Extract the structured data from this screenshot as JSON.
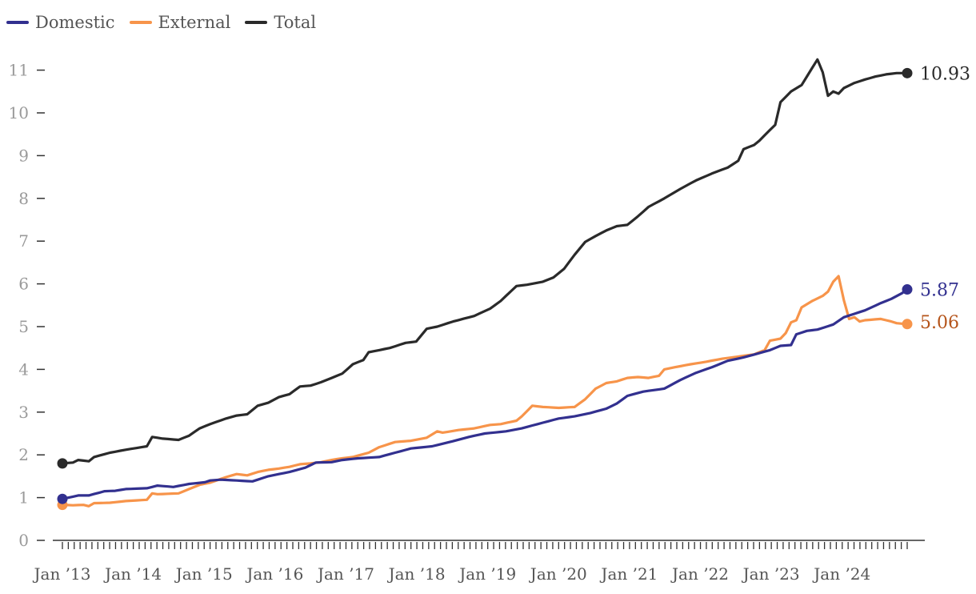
{
  "chart_data": {
    "type": "line",
    "title": "",
    "xlabel": "",
    "ylabel": "",
    "ylim": [
      0,
      11.4
    ],
    "yticks": [
      0,
      1,
      2,
      3,
      4,
      5,
      6,
      7,
      8,
      9,
      10,
      11
    ],
    "xtick_labels": [
      "Jan ’13",
      "Jan ’14",
      "Jan ’15",
      "Jan ’16",
      "Jan ’17",
      "Jan ’18",
      "Jan ’19",
      "Jan ’20",
      "Jan ’21",
      "Jan ’22",
      "Jan ’23",
      "Jan ’24"
    ],
    "x_start": "Jan 2013",
    "x_end": "Dec 2024",
    "months": 144,
    "legend_position": "top-left",
    "grid": false,
    "series": [
      {
        "name": "Domestic",
        "color": "#32308f",
        "end_label": "5.87",
        "anchors": [
          [
            0,
            0.97
          ],
          [
            3,
            1.05
          ],
          [
            5,
            1.05
          ],
          [
            8,
            1.15
          ],
          [
            10,
            1.16
          ],
          [
            12,
            1.2
          ],
          [
            16,
            1.22
          ],
          [
            18,
            1.28
          ],
          [
            21,
            1.25
          ],
          [
            24,
            1.32
          ],
          [
            27,
            1.36
          ],
          [
            28,
            1.4
          ],
          [
            30,
            1.42
          ],
          [
            33,
            1.4
          ],
          [
            36,
            1.38
          ],
          [
            39,
            1.5
          ],
          [
            41,
            1.55
          ],
          [
            43,
            1.6
          ],
          [
            46,
            1.7
          ],
          [
            48,
            1.82
          ],
          [
            51,
            1.83
          ],
          [
            53,
            1.88
          ],
          [
            56,
            1.92
          ],
          [
            60,
            1.95
          ],
          [
            63,
            2.05
          ],
          [
            66,
            2.15
          ],
          [
            70,
            2.2
          ],
          [
            74,
            2.32
          ],
          [
            77,
            2.42
          ],
          [
            80,
            2.5
          ],
          [
            84,
            2.55
          ],
          [
            87,
            2.62
          ],
          [
            90,
            2.72
          ],
          [
            94,
            2.85
          ],
          [
            97,
            2.9
          ],
          [
            100,
            2.98
          ],
          [
            103,
            3.08
          ],
          [
            105,
            3.2
          ],
          [
            107,
            3.38
          ],
          [
            110,
            3.48
          ],
          [
            114,
            3.55
          ],
          [
            117,
            3.75
          ],
          [
            120,
            3.92
          ],
          [
            123,
            4.05
          ],
          [
            126,
            4.2
          ],
          [
            129,
            4.28
          ],
          [
            132,
            4.38
          ],
          [
            134,
            4.45
          ],
          [
            136,
            4.55
          ],
          [
            138,
            4.57
          ],
          [
            139,
            4.82
          ],
          [
            141,
            4.9
          ],
          [
            143,
            4.93
          ],
          [
            146,
            5.05
          ],
          [
            148,
            5.22
          ],
          [
            150,
            5.3
          ],
          [
            152,
            5.38
          ],
          [
            155,
            5.55
          ],
          [
            157,
            5.65
          ],
          [
            159,
            5.78
          ],
          [
            160,
            5.87
          ]
        ]
      },
      {
        "name": "External",
        "color": "#f7944a",
        "end_label": "5.06",
        "anchors": [
          [
            0,
            0.83
          ],
          [
            2,
            0.82
          ],
          [
            4,
            0.83
          ],
          [
            5,
            0.8
          ],
          [
            6,
            0.87
          ],
          [
            9,
            0.88
          ],
          [
            12,
            0.92
          ],
          [
            16,
            0.95
          ],
          [
            17,
            1.1
          ],
          [
            18,
            1.08
          ],
          [
            22,
            1.1
          ],
          [
            24,
            1.2
          ],
          [
            26,
            1.3
          ],
          [
            28,
            1.35
          ],
          [
            31,
            1.48
          ],
          [
            33,
            1.55
          ],
          [
            35,
            1.52
          ],
          [
            37,
            1.6
          ],
          [
            39,
            1.65
          ],
          [
            41,
            1.68
          ],
          [
            43,
            1.72
          ],
          [
            45,
            1.78
          ],
          [
            47,
            1.8
          ],
          [
            49,
            1.83
          ],
          [
            51,
            1.88
          ],
          [
            53,
            1.92
          ],
          [
            55,
            1.95
          ],
          [
            58,
            2.05
          ],
          [
            60,
            2.18
          ],
          [
            63,
            2.3
          ],
          [
            66,
            2.33
          ],
          [
            69,
            2.4
          ],
          [
            71,
            2.55
          ],
          [
            72,
            2.52
          ],
          [
            75,
            2.58
          ],
          [
            78,
            2.62
          ],
          [
            81,
            2.7
          ],
          [
            83,
            2.72
          ],
          [
            86,
            2.8
          ],
          [
            87,
            2.9
          ],
          [
            89,
            3.15
          ],
          [
            91,
            3.12
          ],
          [
            94,
            3.1
          ],
          [
            97,
            3.12
          ],
          [
            99,
            3.3
          ],
          [
            101,
            3.55
          ],
          [
            103,
            3.68
          ],
          [
            105,
            3.72
          ],
          [
            107,
            3.8
          ],
          [
            109,
            3.82
          ],
          [
            111,
            3.8
          ],
          [
            113,
            3.85
          ],
          [
            114,
            4.0
          ],
          [
            116,
            4.05
          ],
          [
            119,
            4.12
          ],
          [
            122,
            4.18
          ],
          [
            125,
            4.25
          ],
          [
            128,
            4.3
          ],
          [
            131,
            4.35
          ],
          [
            133,
            4.45
          ],
          [
            134,
            4.67
          ],
          [
            136,
            4.72
          ],
          [
            137,
            4.85
          ],
          [
            138,
            5.1
          ],
          [
            139,
            5.15
          ],
          [
            140,
            5.45
          ],
          [
            142,
            5.6
          ],
          [
            144,
            5.72
          ],
          [
            145,
            5.82
          ],
          [
            146,
            6.05
          ],
          [
            147,
            6.18
          ],
          [
            148,
            5.62
          ],
          [
            149,
            5.18
          ],
          [
            150,
            5.22
          ],
          [
            151,
            5.12
          ],
          [
            152,
            5.15
          ],
          [
            155,
            5.18
          ],
          [
            157,
            5.12
          ],
          [
            158,
            5.08
          ],
          [
            160,
            5.06
          ]
        ]
      },
      {
        "name": "Total",
        "color": "#2a2a2a",
        "end_label": "10.93",
        "anchors": [
          [
            0,
            1.8
          ],
          [
            2,
            1.82
          ],
          [
            3,
            1.88
          ],
          [
            5,
            1.85
          ],
          [
            6,
            1.95
          ],
          [
            9,
            2.05
          ],
          [
            12,
            2.12
          ],
          [
            16,
            2.2
          ],
          [
            17,
            2.42
          ],
          [
            19,
            2.38
          ],
          [
            22,
            2.35
          ],
          [
            24,
            2.45
          ],
          [
            26,
            2.62
          ],
          [
            28,
            2.72
          ],
          [
            31,
            2.85
          ],
          [
            33,
            2.92
          ],
          [
            35,
            2.95
          ],
          [
            37,
            3.15
          ],
          [
            39,
            3.22
          ],
          [
            41,
            3.35
          ],
          [
            43,
            3.42
          ],
          [
            45,
            3.6
          ],
          [
            47,
            3.62
          ],
          [
            49,
            3.7
          ],
          [
            51,
            3.8
          ],
          [
            53,
            3.9
          ],
          [
            55,
            4.12
          ],
          [
            57,
            4.22
          ],
          [
            58,
            4.4
          ],
          [
            60,
            4.45
          ],
          [
            62,
            4.5
          ],
          [
            65,
            4.62
          ],
          [
            67,
            4.65
          ],
          [
            69,
            4.95
          ],
          [
            71,
            5.0
          ],
          [
            74,
            5.12
          ],
          [
            78,
            5.25
          ],
          [
            81,
            5.42
          ],
          [
            83,
            5.6
          ],
          [
            86,
            5.95
          ],
          [
            88,
            5.98
          ],
          [
            91,
            6.05
          ],
          [
            93,
            6.15
          ],
          [
            95,
            6.35
          ],
          [
            97,
            6.68
          ],
          [
            99,
            6.98
          ],
          [
            101,
            7.12
          ],
          [
            103,
            7.25
          ],
          [
            105,
            7.35
          ],
          [
            107,
            7.38
          ],
          [
            109,
            7.58
          ],
          [
            111,
            7.8
          ],
          [
            114,
            8.0
          ],
          [
            117,
            8.22
          ],
          [
            120,
            8.42
          ],
          [
            123,
            8.58
          ],
          [
            126,
            8.72
          ],
          [
            128,
            8.88
          ],
          [
            129,
            9.15
          ],
          [
            131,
            9.25
          ],
          [
            132,
            9.35
          ],
          [
            134,
            9.6
          ],
          [
            135,
            9.72
          ],
          [
            136,
            10.25
          ],
          [
            138,
            10.5
          ],
          [
            140,
            10.65
          ],
          [
            142,
            11.05
          ],
          [
            143,
            11.25
          ],
          [
            144,
            10.95
          ],
          [
            145,
            10.4
          ],
          [
            146,
            10.5
          ],
          [
            147,
            10.45
          ],
          [
            148,
            10.58
          ],
          [
            150,
            10.7
          ],
          [
            152,
            10.78
          ],
          [
            154,
            10.85
          ],
          [
            156,
            10.9
          ],
          [
            158,
            10.93
          ],
          [
            160,
            10.93
          ]
        ]
      }
    ]
  }
}
